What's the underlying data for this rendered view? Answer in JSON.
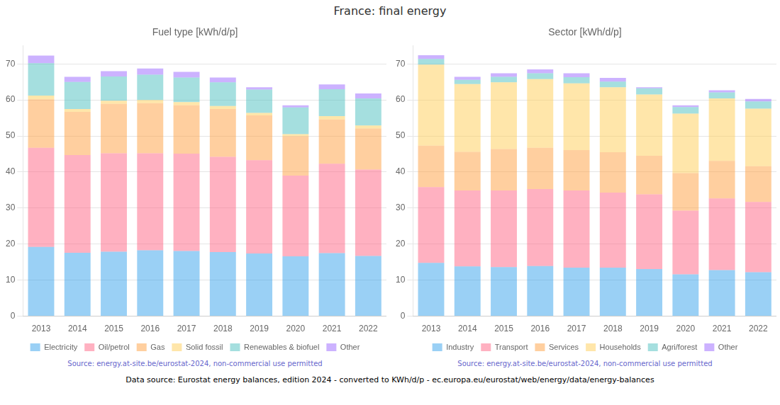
{
  "title": "France: final energy",
  "annotations": [
    "Data source: Eurostat energy balances, edition 2024 - converted to KWh/d/p - ec.europa.eu/eurostat/web/energy/data/energy-balances"
  ],
  "chart_data": [
    {
      "type": "bar",
      "title": "Fuel type [kWh/d/p]",
      "categories": [
        "2013",
        "2014",
        "2015",
        "2016",
        "2017",
        "2018",
        "2019",
        "2020",
        "2021",
        "2022"
      ],
      "series": [
        {
          "name": "Electricity",
          "values": [
            19.2,
            17.6,
            17.9,
            18.3,
            18.1,
            17.8,
            17.4,
            16.6,
            17.5,
            16.7
          ]
        },
        {
          "name": "Oil/petrol",
          "values": [
            27.5,
            27.1,
            27.3,
            26.9,
            27.0,
            26.4,
            25.9,
            22.4,
            24.8,
            24.0
          ]
        },
        {
          "name": "Gas",
          "values": [
            13.5,
            12.0,
            13.7,
            13.9,
            13.4,
            13.3,
            12.4,
            10.9,
            12.3,
            11.4
          ]
        },
        {
          "name": "Solid fossil",
          "values": [
            1.0,
            0.8,
            0.9,
            0.9,
            0.9,
            0.8,
            0.7,
            0.6,
            0.9,
            0.8
          ]
        },
        {
          "name": "Renewables & biofuel",
          "values": [
            9.0,
            7.5,
            6.7,
            7.0,
            6.8,
            6.6,
            6.5,
            7.4,
            7.5,
            7.5
          ]
        },
        {
          "name": "Other",
          "values": [
            2.1,
            1.4,
            1.5,
            1.7,
            1.6,
            1.3,
            0.6,
            0.6,
            1.3,
            1.4
          ]
        }
      ],
      "stacked": true,
      "ylim": [
        0,
        75
      ],
      "yticks": [
        0,
        10,
        20,
        30,
        40,
        50,
        60,
        70
      ],
      "grid": "y",
      "legend": "bottom",
      "annotations": [
        "Source: energy.at-site.be/eurostat-2024, non-commercial use permitted"
      ]
    },
    {
      "type": "bar",
      "title": "Sector [kWh/d/p]",
      "categories": [
        "2013",
        "2014",
        "2015",
        "2016",
        "2017",
        "2018",
        "2019",
        "2020",
        "2021",
        "2022"
      ],
      "series": [
        {
          "name": "Industry",
          "values": [
            14.8,
            13.8,
            13.6,
            13.9,
            13.5,
            13.5,
            13.1,
            11.6,
            12.8,
            12.2
          ]
        },
        {
          "name": "Transport",
          "values": [
            21.0,
            21.1,
            21.3,
            21.4,
            21.4,
            20.8,
            20.7,
            17.7,
            19.9,
            19.5
          ]
        },
        {
          "name": "Services",
          "values": [
            11.5,
            10.7,
            11.5,
            11.4,
            11.2,
            11.2,
            10.7,
            10.4,
            10.4,
            9.9
          ]
        },
        {
          "name": "Households",
          "values": [
            22.5,
            18.8,
            18.5,
            19.1,
            18.5,
            18.0,
            17.0,
            16.5,
            17.3,
            16.0
          ]
        },
        {
          "name": "Agri/forest",
          "values": [
            1.6,
            1.2,
            1.5,
            1.6,
            1.7,
            1.6,
            1.7,
            1.8,
            1.7,
            2.0
          ]
        },
        {
          "name": "Other",
          "values": [
            1.0,
            0.8,
            1.0,
            1.1,
            1.1,
            1.0,
            0.3,
            0.5,
            0.6,
            0.7
          ]
        }
      ],
      "stacked": true,
      "ylim": [
        0,
        75
      ],
      "yticks": [
        0,
        10,
        20,
        30,
        40,
        50,
        60,
        70
      ],
      "grid": "y",
      "legend": "bottom",
      "annotations": [
        "Source: energy.at-site.be/eurostat-2024, non-commercial use permitted"
      ]
    }
  ]
}
